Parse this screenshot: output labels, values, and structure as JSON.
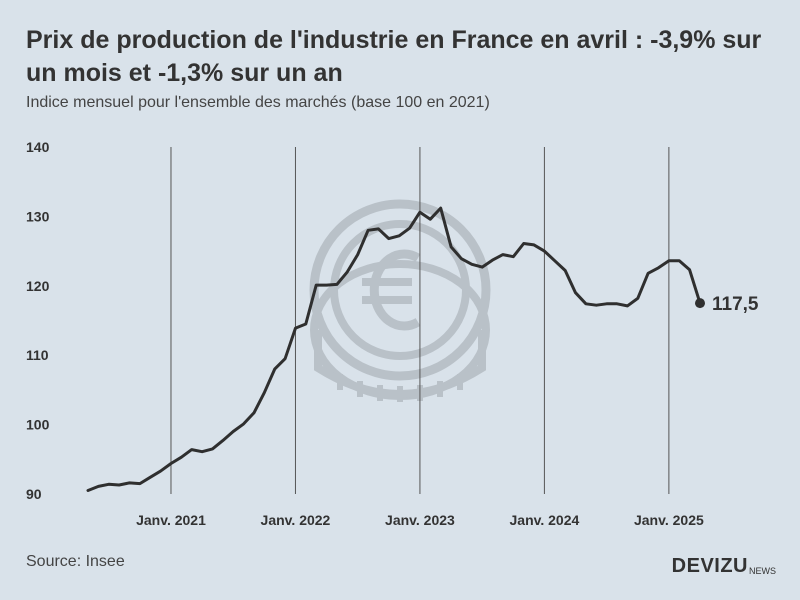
{
  "header": {
    "title": "Prix de production de l'industrie en France en avril : -3,9% sur un mois et -1,3% sur un an",
    "subtitle": "Indice mensuel pour l'ensemble des marchés (base 100 en 2021)"
  },
  "footer": {
    "source": "Source: Insee",
    "brand": "DEVIZU",
    "brand_suffix": "NEWS"
  },
  "colors": {
    "background": "#d9e2ea",
    "line": "#2f2f2f",
    "gridline": "#555555",
    "watermark": "#b4bcc3"
  },
  "watermark_icon": "euro-coin-icon",
  "chart_data": {
    "type": "line",
    "title": "Prix de production de l'industrie en France en avril : -3,9% sur un mois et -1,3% sur un an",
    "subtitle": "Indice mensuel pour l'ensemble des marchés (base 100 en 2021)",
    "xlabel": "",
    "ylabel": "",
    "ylim": [
      90,
      140
    ],
    "yticks": [
      90,
      100,
      110,
      120,
      130,
      140
    ],
    "x_start": "2020-05",
    "x_index_range": [
      0,
      59
    ],
    "xticks": [
      {
        "index": 8,
        "label": "Janv. 2021"
      },
      {
        "index": 20,
        "label": "Janv. 2022"
      },
      {
        "index": 32,
        "label": "Janv. 2023"
      },
      {
        "index": 44,
        "label": "Janv. 2024"
      },
      {
        "index": 56,
        "label": "Janv. 2025"
      }
    ],
    "vertical_gridlines_at": [
      8,
      20,
      32,
      44,
      56
    ],
    "series": [
      {
        "name": "Indice des prix de production de l'industrie",
        "values": [
          90.5,
          91.1,
          91.4,
          91.3,
          91.6,
          91.5,
          92.4,
          93.3,
          94.4,
          95.3,
          96.4,
          96.1,
          96.5,
          97.7,
          99.0,
          100.1,
          101.7,
          104.6,
          108.0,
          109.5,
          113.9,
          114.5,
          120.1,
          120.1,
          120.2,
          122.0,
          124.5,
          128.0,
          128.2,
          126.8,
          127.2,
          128.3,
          130.6,
          129.6,
          131.2,
          125.6,
          123.9,
          123.1,
          122.7,
          123.7,
          124.5,
          124.2,
          126.1,
          125.9,
          125.0,
          123.6,
          122.2,
          119.0,
          117.4,
          117.2,
          117.4,
          117.4,
          117.1,
          118.2,
          121.8,
          122.6,
          123.6,
          123.6,
          122.3,
          117.5
        ]
      }
    ],
    "annotations": [
      {
        "index": 59,
        "text": "117,5"
      }
    ],
    "grid": {
      "horizontal": false,
      "vertical": true
    },
    "legend": "none"
  }
}
